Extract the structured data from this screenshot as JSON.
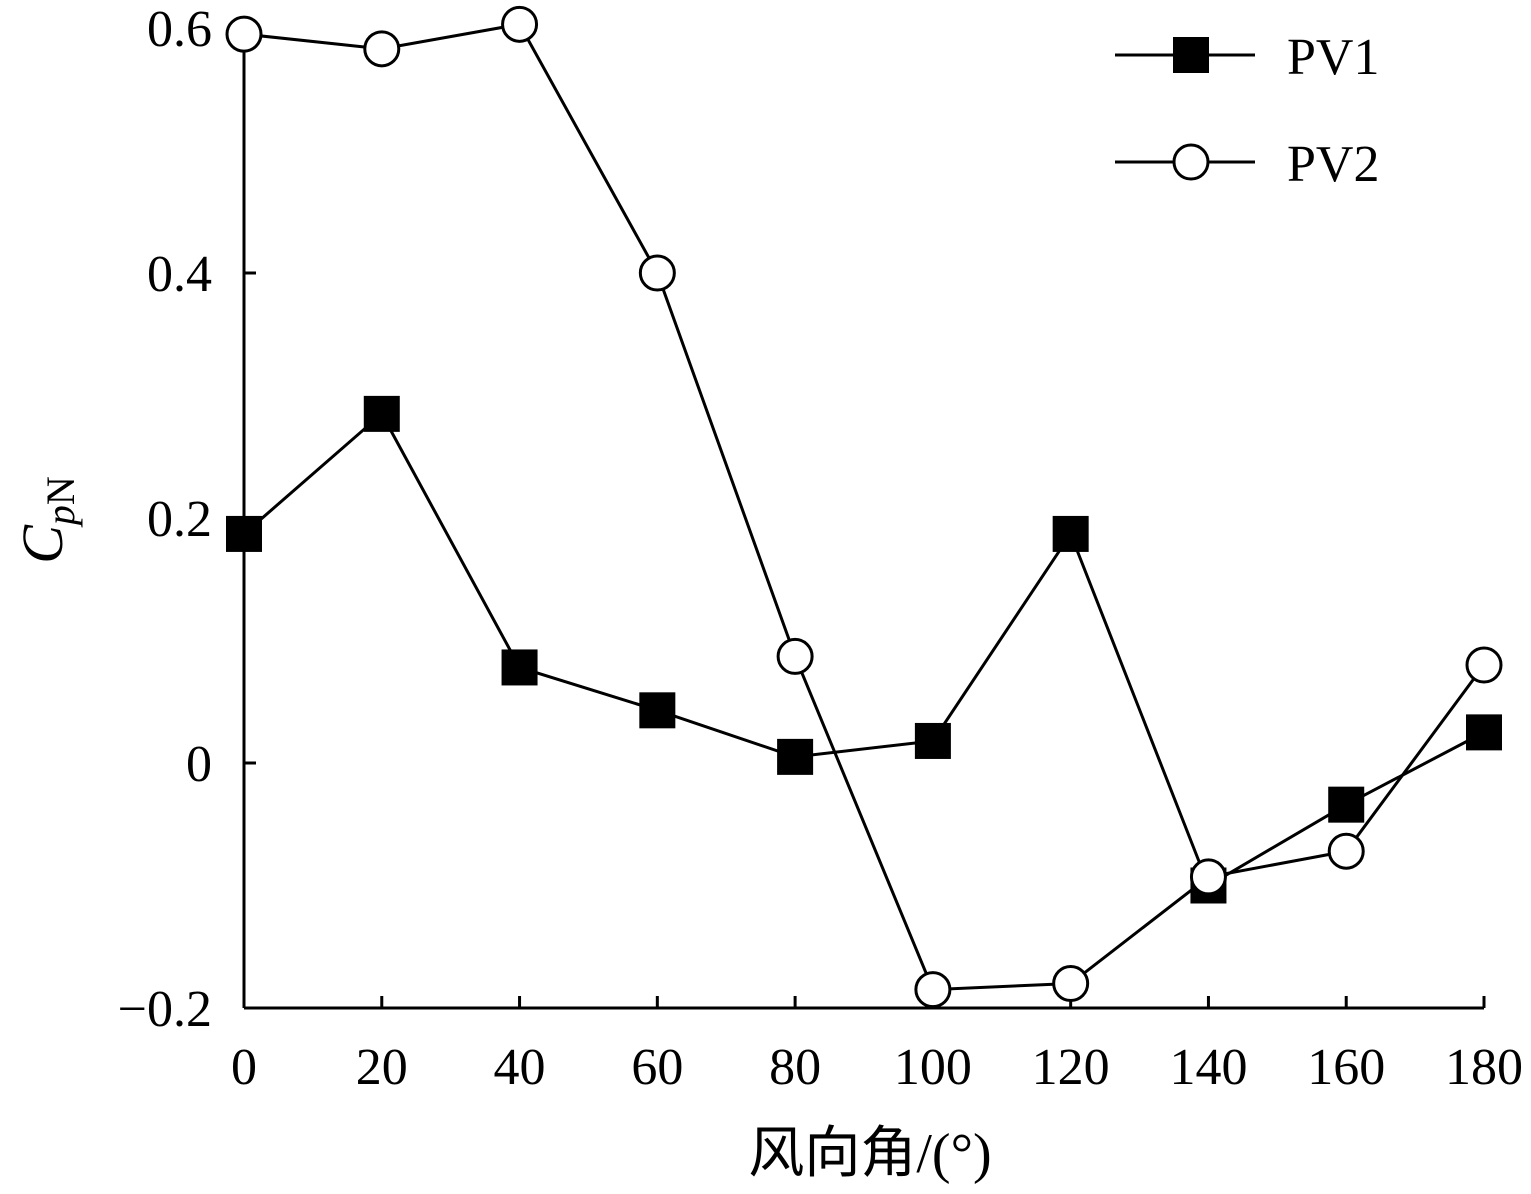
{
  "chart_data": {
    "type": "line",
    "x": [
      0,
      20,
      40,
      60,
      80,
      100,
      120,
      140,
      160,
      180
    ],
    "series": [
      {
        "name": "PV1",
        "marker": "filled-square",
        "values": [
          0.187,
          0.285,
          0.078,
          0.043,
          0.005,
          0.018,
          0.187,
          -0.1,
          -0.034,
          0.025
        ]
      },
      {
        "name": "PV2",
        "marker": "open-circle",
        "values": [
          0.595,
          0.583,
          0.603,
          0.4,
          0.087,
          -0.185,
          -0.18,
          -0.093,
          -0.072,
          0.08
        ]
      }
    ],
    "xlabel": "风向角/(°)",
    "ylabel_main": "C",
    "ylabel_sub": "p",
    "ylabel_sub2": "N",
    "xlim": [
      0,
      180
    ],
    "ylim": [
      -0.2,
      0.6
    ],
    "xticks": [
      "0",
      "20",
      "40",
      "60",
      "80",
      "100",
      "120",
      "140",
      "160",
      "180"
    ],
    "yticks": [
      "−0.2",
      "0",
      "0.2",
      "0.4",
      "0.6"
    ],
    "grid": false,
    "legend_position": "top-right",
    "colors": {
      "line": "#000000",
      "background": "#ffffff"
    }
  }
}
